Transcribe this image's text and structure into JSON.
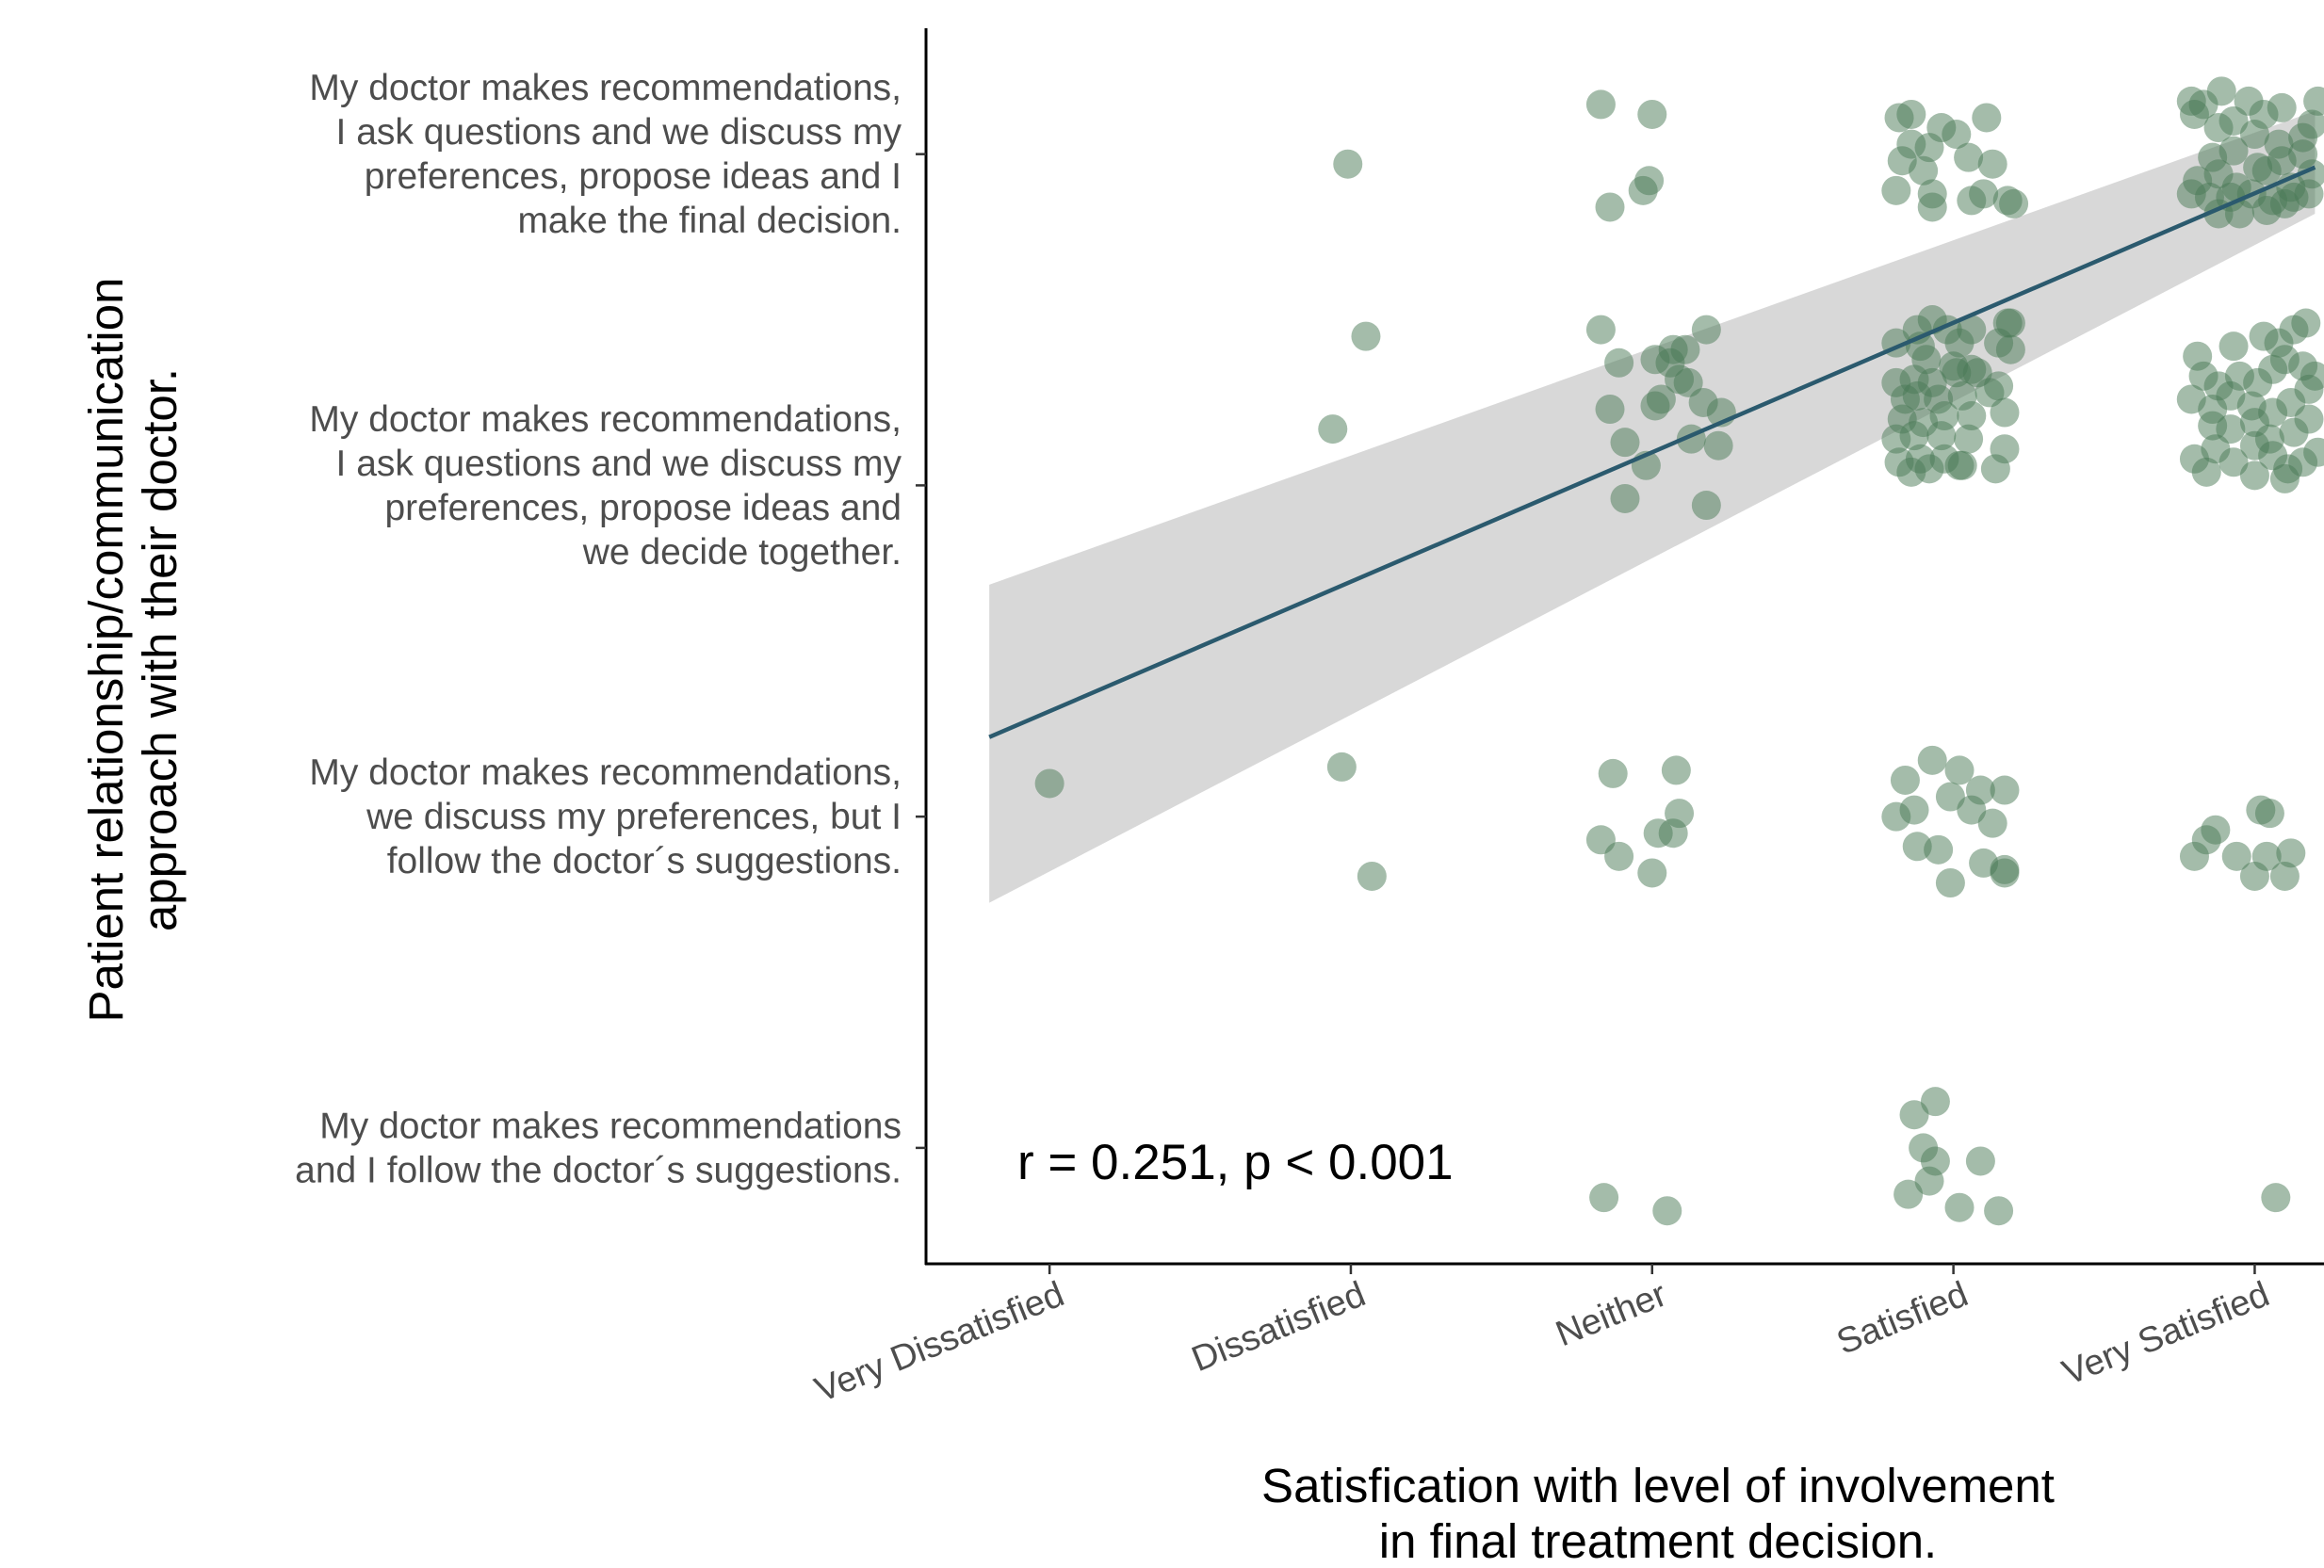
{
  "chart_data": {
    "type": "scatter",
    "title": "",
    "xlabel": [
      "Satisfication with level of involvement",
      "in final treatment decision."
    ],
    "ylabel": [
      "Patient relationship/communication",
      "approach with their doctor."
    ],
    "x_categories": [
      "Very Dissatisfied",
      "Dissatisfied",
      "Neither",
      "Satisfied",
      "Very Satisfied"
    ],
    "y_categories": [
      [
        "My doctor makes recommendations",
        "and I follow the doctor´s suggestions."
      ],
      [
        "My doctor makes recommendations,",
        "we discuss my preferences, but I",
        "follow the doctor´s suggestions."
      ],
      [
        "My doctor makes recommendations,",
        "I ask questions and we discuss my",
        "preferences, propose ideas and",
        "we decide together."
      ],
      [
        "My doctor makes recommendations,",
        "I ask questions and we discuss my",
        "preferences, propose ideas and I",
        "make the final decision."
      ]
    ],
    "xlim": [
      0.59,
      5.23
    ],
    "ylim": [
      0.65,
      4.38
    ],
    "grid": false,
    "legend": "none",
    "point_color": "#4a7a56",
    "line_color": "#2b5a6e",
    "ribbon_color": "#d6d6d6",
    "annotation": "r =  0.251, p < 0.001",
    "regression": {
      "x_from": 0.8,
      "x_to": 5.2,
      "line": [
        2.24,
        3.96
      ],
      "ribbon_lower": [
        1.74,
        3.82
      ],
      "ribbon_upper": [
        2.7,
        4.13
      ]
    },
    "points": [
      [
        1.0,
        2.1
      ],
      [
        1.99,
        3.97
      ],
      [
        1.94,
        3.17
      ],
      [
        2.05,
        3.45
      ],
      [
        1.97,
        2.15
      ],
      [
        2.07,
        1.82
      ],
      [
        2.83,
        4.15
      ],
      [
        2.86,
        3.84
      ],
      [
        3.0,
        4.12
      ],
      [
        2.97,
        3.89
      ],
      [
        2.99,
        3.92
      ],
      [
        2.83,
        3.47
      ],
      [
        2.89,
        3.37
      ],
      [
        3.06,
        3.37
      ],
      [
        3.18,
        3.47
      ],
      [
        3.03,
        3.26
      ],
      [
        2.91,
        3.13
      ],
      [
        3.12,
        3.31
      ],
      [
        3.13,
        3.14
      ],
      [
        3.22,
        3.12
      ],
      [
        3.23,
        3.22
      ],
      [
        2.86,
        3.23
      ],
      [
        3.01,
        3.38
      ],
      [
        3.11,
        3.41
      ],
      [
        3.17,
        3.25
      ],
      [
        2.91,
        2.96
      ],
      [
        3.18,
        2.94
      ],
      [
        3.07,
        3.41
      ],
      [
        2.98,
        3.06
      ],
      [
        3.01,
        3.24
      ],
      [
        3.09,
        3.32
      ],
      [
        2.87,
        2.13
      ],
      [
        3.08,
        2.14
      ],
      [
        2.83,
        1.93
      ],
      [
        2.89,
        1.88
      ],
      [
        3.0,
        1.83
      ],
      [
        3.07,
        1.95
      ],
      [
        3.09,
        2.01
      ],
      [
        3.02,
        1.95
      ],
      [
        2.84,
        0.85
      ],
      [
        3.05,
        0.81
      ],
      [
        3.82,
        4.11
      ],
      [
        3.86,
        4.12
      ],
      [
        3.96,
        4.08
      ],
      [
        3.86,
        4.03
      ],
      [
        4.11,
        4.11
      ],
      [
        3.92,
        4.02
      ],
      [
        4.01,
        4.06
      ],
      [
        4.05,
        3.99
      ],
      [
        4.13,
        3.97
      ],
      [
        3.83,
        3.98
      ],
      [
        3.9,
        3.95
      ],
      [
        3.81,
        3.89
      ],
      [
        3.93,
        3.88
      ],
      [
        4.1,
        3.88
      ],
      [
        4.18,
        3.86
      ],
      [
        3.93,
        3.84
      ],
      [
        4.06,
        3.86
      ],
      [
        4.2,
        3.85
      ],
      [
        3.88,
        3.47
      ],
      [
        3.93,
        3.5
      ],
      [
        3.98,
        3.47
      ],
      [
        4.06,
        3.47
      ],
      [
        4.18,
        3.49
      ],
      [
        3.81,
        3.43
      ],
      [
        3.89,
        3.42
      ],
      [
        4.02,
        3.43
      ],
      [
        4.15,
        3.43
      ],
      [
        4.19,
        3.49
      ],
      [
        3.91,
        3.38
      ],
      [
        4.0,
        3.36
      ],
      [
        4.06,
        3.35
      ],
      [
        4.19,
        3.41
      ],
      [
        3.81,
        3.31
      ],
      [
        3.87,
        3.32
      ],
      [
        3.93,
        3.31
      ],
      [
        4.01,
        3.34
      ],
      [
        4.08,
        3.34
      ],
      [
        3.84,
        3.26
      ],
      [
        3.88,
        3.27
      ],
      [
        3.95,
        3.26
      ],
      [
        4.03,
        3.27
      ],
      [
        4.12,
        3.28
      ],
      [
        4.15,
        3.3
      ],
      [
        3.83,
        3.2
      ],
      [
        3.9,
        3.19
      ],
      [
        3.97,
        3.21
      ],
      [
        4.06,
        3.21
      ],
      [
        4.17,
        3.22
      ],
      [
        3.81,
        3.14
      ],
      [
        3.87,
        3.15
      ],
      [
        3.96,
        3.15
      ],
      [
        4.05,
        3.14
      ],
      [
        4.17,
        3.11
      ],
      [
        3.82,
        3.07
      ],
      [
        3.89,
        3.08
      ],
      [
        3.97,
        3.08
      ],
      [
        4.03,
        3.06
      ],
      [
        4.14,
        3.05
      ],
      [
        3.86,
        3.04
      ],
      [
        3.92,
        3.05
      ],
      [
        4.02,
        3.06
      ],
      [
        3.84,
        2.11
      ],
      [
        3.93,
        2.17
      ],
      [
        4.02,
        2.14
      ],
      [
        4.09,
        2.08
      ],
      [
        4.17,
        2.08
      ],
      [
        3.81,
        2.0
      ],
      [
        3.87,
        2.02
      ],
      [
        3.99,
        2.06
      ],
      [
        4.06,
        2.02
      ],
      [
        4.13,
        1.98
      ],
      [
        3.88,
        1.91
      ],
      [
        3.95,
        1.9
      ],
      [
        4.1,
        1.86
      ],
      [
        4.17,
        1.84
      ],
      [
        3.99,
        1.8
      ],
      [
        4.17,
        1.83
      ],
      [
        3.87,
        1.1
      ],
      [
        3.94,
        1.14
      ],
      [
        3.9,
        1.0
      ],
      [
        3.94,
        0.96
      ],
      [
        4.09,
        0.96
      ],
      [
        3.85,
        0.86
      ],
      [
        3.92,
        0.9
      ],
      [
        4.02,
        0.82
      ],
      [
        4.15,
        0.81
      ],
      [
        4.79,
        4.16
      ],
      [
        4.83,
        4.15
      ],
      [
        4.89,
        4.19
      ],
      [
        4.98,
        4.16
      ],
      [
        5.03,
        4.12
      ],
      [
        5.09,
        4.14
      ],
      [
        5.21,
        4.16
      ],
      [
        4.8,
        4.12
      ],
      [
        4.88,
        4.08
      ],
      [
        4.93,
        4.1
      ],
      [
        5.0,
        4.06
      ],
      [
        5.08,
        4.03
      ],
      [
        5.16,
        4.05
      ],
      [
        5.19,
        4.09
      ],
      [
        4.86,
        3.99
      ],
      [
        4.93,
        4.01
      ],
      [
        5.01,
        3.96
      ],
      [
        5.09,
        3.98
      ],
      [
        5.16,
        4.0
      ],
      [
        4.81,
        3.92
      ],
      [
        4.88,
        3.94
      ],
      [
        4.94,
        3.9
      ],
      [
        5.04,
        3.95
      ],
      [
        5.12,
        3.9
      ],
      [
        5.19,
        3.94
      ],
      [
        4.79,
        3.88
      ],
      [
        4.85,
        3.87
      ],
      [
        4.92,
        3.87
      ],
      [
        4.99,
        3.88
      ],
      [
        5.06,
        3.86
      ],
      [
        5.13,
        3.87
      ],
      [
        5.18,
        3.88
      ],
      [
        4.88,
        3.82
      ],
      [
        4.95,
        3.82
      ],
      [
        5.04,
        3.83
      ],
      [
        5.1,
        3.85
      ],
      [
        4.81,
        3.39
      ],
      [
        4.93,
        3.42
      ],
      [
        5.03,
        3.45
      ],
      [
        5.08,
        3.43
      ],
      [
        5.13,
        3.47
      ],
      [
        5.17,
        3.49
      ],
      [
        4.83,
        3.33
      ],
      [
        4.88,
        3.3
      ],
      [
        4.95,
        3.33
      ],
      [
        5.01,
        3.31
      ],
      [
        5.06,
        3.35
      ],
      [
        5.1,
        3.38
      ],
      [
        5.16,
        3.36
      ],
      [
        5.2,
        3.33
      ],
      [
        4.79,
        3.26
      ],
      [
        4.86,
        3.23
      ],
      [
        4.92,
        3.27
      ],
      [
        4.99,
        3.24
      ],
      [
        5.06,
        3.22
      ],
      [
        5.12,
        3.25
      ],
      [
        5.18,
        3.29
      ],
      [
        4.86,
        3.18
      ],
      [
        4.92,
        3.17
      ],
      [
        5.0,
        3.19
      ],
      [
        5.05,
        3.14
      ],
      [
        5.13,
        3.16
      ],
      [
        5.18,
        3.2
      ],
      [
        4.8,
        3.08
      ],
      [
        4.87,
        3.11
      ],
      [
        4.93,
        3.07
      ],
      [
        5.0,
        3.12
      ],
      [
        5.06,
        3.09
      ],
      [
        5.11,
        3.05
      ],
      [
        5.16,
        3.07
      ],
      [
        5.21,
        3.1
      ],
      [
        4.84,
        3.04
      ],
      [
        5.0,
        3.03
      ],
      [
        5.1,
        3.02
      ],
      [
        4.8,
        1.88
      ],
      [
        4.84,
        1.93
      ],
      [
        4.87,
        1.96
      ],
      [
        4.94,
        1.88
      ],
      [
        5.02,
        2.02
      ],
      [
        5.05,
        2.01
      ],
      [
        5.0,
        1.82
      ],
      [
        5.1,
        1.82
      ],
      [
        5.12,
        1.89
      ],
      [
        5.04,
        1.88
      ],
      [
        5.07,
        0.85
      ]
    ]
  }
}
